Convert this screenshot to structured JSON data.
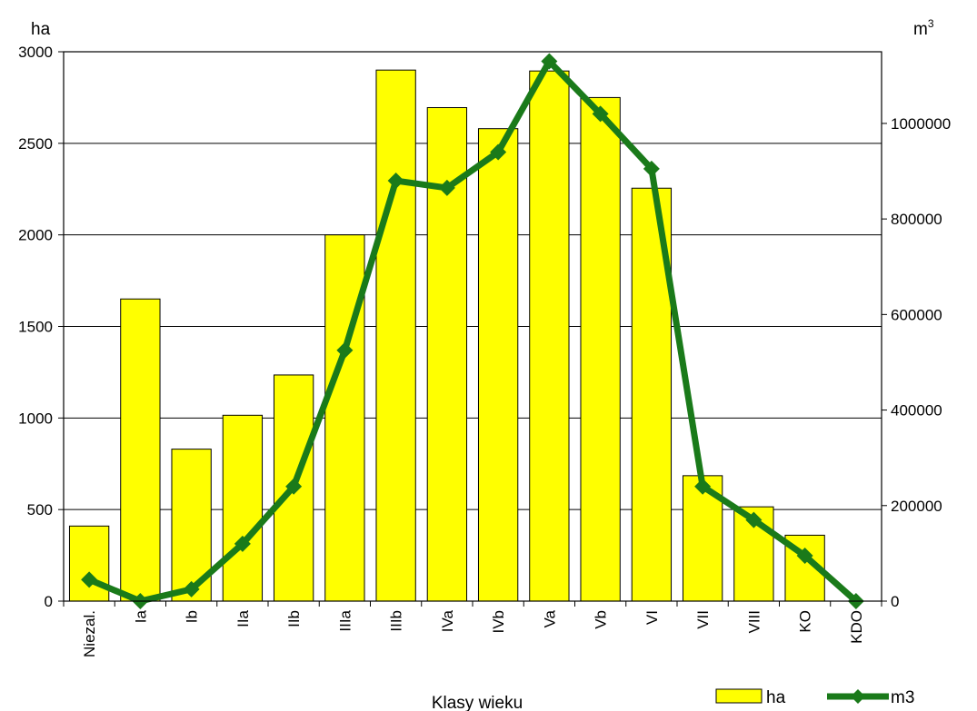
{
  "chart_data": {
    "type": "bar",
    "categories": [
      "Niezal.",
      "Ia",
      "Ib",
      "IIa",
      "IIb",
      "IIIa",
      "IIIb",
      "IVa",
      "IVb",
      "Va",
      "Vb",
      "VI",
      "VII",
      "VIII",
      "KO",
      "KDO"
    ],
    "series": [
      {
        "name": "ha",
        "type": "bar",
        "axis": "left",
        "color": "#ffff00",
        "values": [
          410,
          1650,
          830,
          1015,
          1235,
          2000,
          2900,
          2695,
          2580,
          2895,
          2750,
          2255,
          685,
          515,
          360,
          0
        ]
      },
      {
        "name": "m3",
        "type": "line",
        "axis": "right",
        "color": "#1a7a1a",
        "marker": "diamond",
        "values": [
          45000,
          0,
          25000,
          120000,
          240000,
          525000,
          880000,
          865000,
          940000,
          1130000,
          1020000,
          905000,
          240000,
          170000,
          95000,
          0
        ]
      }
    ],
    "xlabel": "Klasy wieku",
    "ylabel_left": "ha",
    "ylabel_right_base": "m",
    "ylabel_right_sup": "3",
    "ylim_left": [
      0,
      3000
    ],
    "ylim_right": [
      0,
      1150000
    ],
    "yticks_left": [
      "0",
      "500",
      "1000",
      "1500",
      "2000",
      "2500",
      "3000"
    ],
    "yticks_right": [
      "0",
      "200000",
      "400000",
      "600000",
      "800000",
      "1000000"
    ],
    "grid": true,
    "legend_position": "bottom-right"
  }
}
